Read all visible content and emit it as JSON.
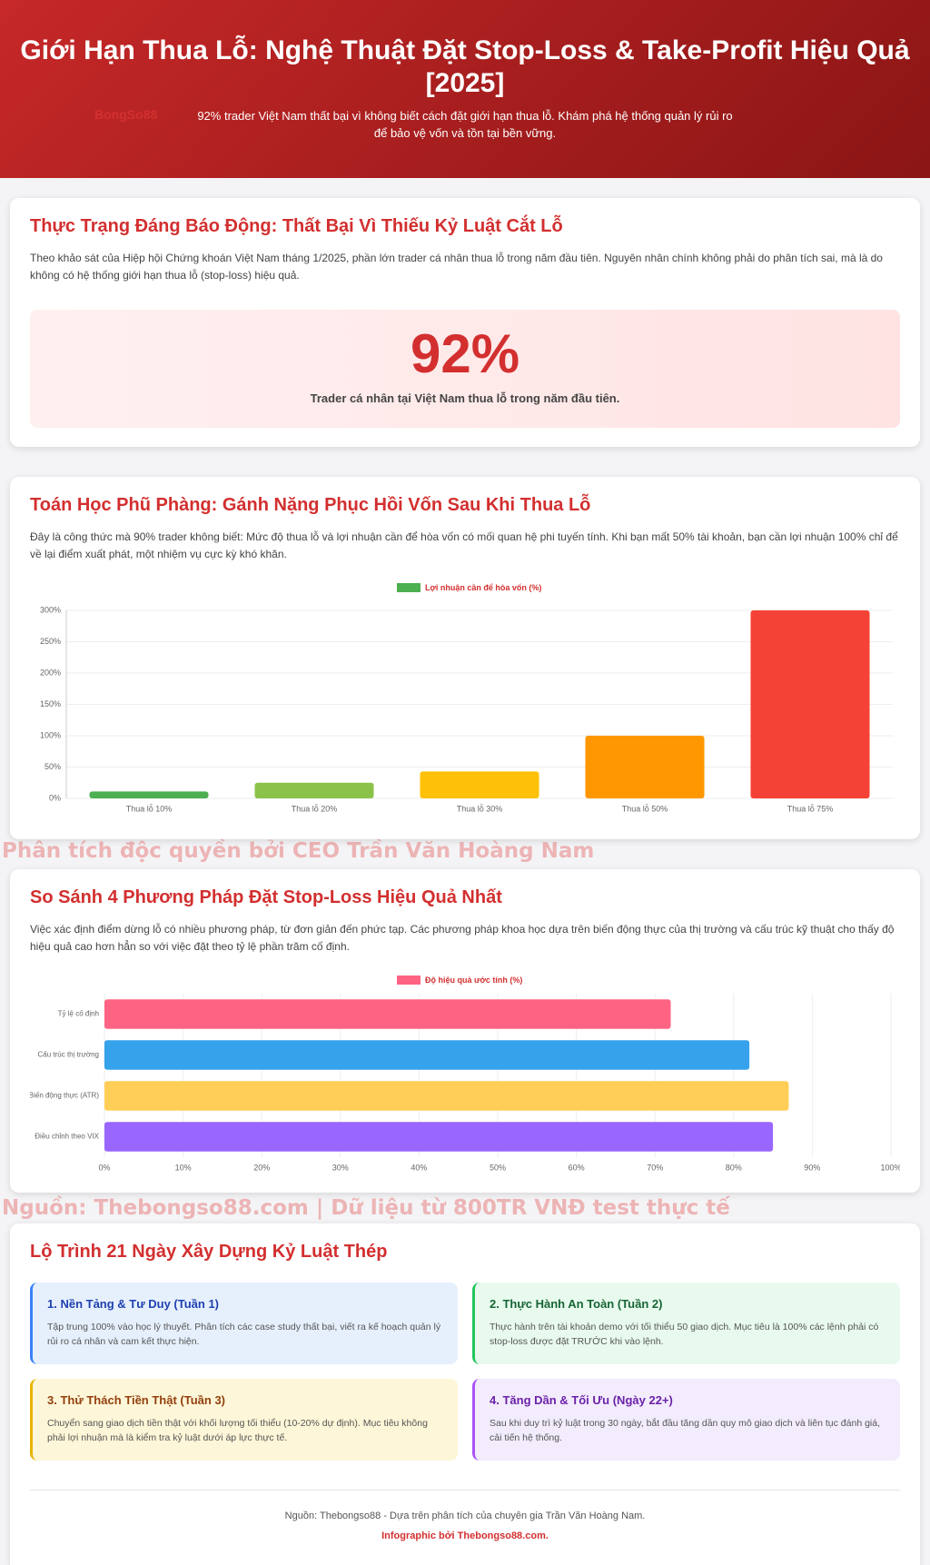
{
  "header": {
    "title": "Giới Hạn Thua Lỗ: Nghệ Thuật Đặt Stop-Loss & Take-Profit Hiệu Quả [2025]",
    "subtitle": "92% trader Việt Nam thất bại vì không biết cách đặt giới hạn thua lỗ. Khám phá hệ thống quản lý rủi ro để bảo vệ vốn và tồn tại bền vững.",
    "logo": "BongSo88"
  },
  "section1": {
    "title": "Thực Trạng Đáng Báo Động: Thất Bại Vì Thiếu Kỷ Luật Cắt Lỗ",
    "text": "Theo khảo sát của Hiệp hội Chứng khoán Việt Nam tháng 1/2025, phần lớn trader cá nhân thua lỗ trong năm đầu tiên. Nguyên nhân chính không phải do phân tích sai, mà là do không có hệ thống giới hạn thua lỗ (stop-loss) hiệu quả.",
    "stat": "92%",
    "stat_caption": "Trader cá nhân tại Việt Nam thua lỗ trong năm đầu tiên."
  },
  "section2": {
    "title": "Toán Học Phũ Phàng: Gánh Nặng Phục Hồi Vốn Sau Khi Thua Lỗ",
    "text": "Đây là công thức mà 90% trader không biết: Mức độ thua lỗ và lợi nhuận cần để hòa vốn có mối quan hệ phi tuyến tính. Khi bạn mất 50% tài khoản, bạn cần lợi nhuận 100% chỉ để về lại điểm xuất phát, một nhiệm vụ cực kỳ khó khăn."
  },
  "watermark1": "Phân tích độc quyền bởi CEO Trần Văn Hoàng Nam",
  "section3": {
    "title": "So Sánh 4 Phương Pháp Đặt Stop-Loss Hiệu Quả Nhất",
    "text": "Việc xác định điểm dừng lỗ có nhiều phương pháp, từ đơn giản đến phức tạp. Các phương pháp khoa học dựa trên biến động thực của thị trường và cấu trúc kỹ thuật cho thấy độ hiệu quả cao hơn hẳn so với việc đặt theo tỷ lệ phần trăm cố định."
  },
  "watermark2": "Nguồn: Thebongso88.com | Dữ liệu từ 800TR VNĐ test thực tế",
  "roadmap": {
    "title": "Lộ Trình 21 Ngày Xây Dựng Kỷ Luật Thép",
    "steps": [
      {
        "title": "1. Nền Tảng & Tư Duy (Tuần 1)",
        "text": "Tập trung 100% vào học lý thuyết. Phân tích các case study thất bại, viết ra kế hoạch quản lý rủi ro cá nhân và cam kết thực hiện."
      },
      {
        "title": "2. Thực Hành An Toàn (Tuần 2)",
        "text": "Thực hành trên tài khoản demo với tối thiểu 50 giao dịch. Mục tiêu là 100% các lệnh phải có stop-loss được đặt TRƯỚC khi vào lệnh."
      },
      {
        "title": "3. Thử Thách Tiền Thật (Tuần 3)",
        "text": "Chuyển sang giao dịch tiền thật với khối lượng tối thiểu (10-20% dự định). Mục tiêu không phải lợi nhuận mà là kiểm tra kỷ luật dưới áp lực thực tế."
      },
      {
        "title": "4. Tăng Dần & Tối Ưu (Ngày 22+)",
        "text": "Sau khi duy trì kỷ luật trong 30 ngày, bắt đầu tăng dần quy mô giao dịch và liên tục đánh giá, cải tiến hệ thống."
      }
    ]
  },
  "footer": {
    "source": "Nguồn: Thebongso88 - Dựa trên phân tích của chuyên gia Trần Văn Hoàng Nam.",
    "credit": "Infographic bởi Thebongso88.com."
  },
  "chart_data": [
    {
      "type": "bar",
      "orientation": "vertical",
      "categories": [
        "Thua lỗ 10%",
        "Thua lỗ 20%",
        "Thua lỗ 30%",
        "Thua lỗ 50%",
        "Thua lỗ 75%"
      ],
      "series": [
        {
          "name": "Lợi nhuận cần để hòa vốn (%)",
          "color": "#4caf50",
          "values": [
            11,
            25,
            43,
            100,
            300
          ]
        }
      ],
      "bar_colors": [
        "#4caf50",
        "#8bc34a",
        "#ffc107",
        "#ff9800",
        "#f44336"
      ],
      "ylim": [
        0,
        300
      ],
      "yticks": [
        {
          "value": 0,
          "label": "0%"
        },
        {
          "value": 50,
          "label": "50%"
        },
        {
          "value": 100,
          "label": "100%"
        },
        {
          "value": 150,
          "label": "150%"
        },
        {
          "value": 200,
          "label": "200%"
        },
        {
          "value": 250,
          "label": "250%"
        },
        {
          "value": 300,
          "label": "300%"
        }
      ],
      "grid": true,
      "legend": "top"
    },
    {
      "type": "bar",
      "orientation": "horizontal",
      "categories": [
        "Tỷ lệ cố định",
        "Cấu trúc thị trường",
        "Biến động thực (ATR)",
        "Điều chỉnh theo VIX"
      ],
      "series": [
        {
          "name": "Độ hiệu quả ước tính (%)",
          "color": "#ff6384",
          "values": [
            72,
            82,
            87,
            85
          ]
        }
      ],
      "bar_colors": [
        "#ff6384",
        "#36a2eb",
        "#ffce56",
        "#9966ff"
      ],
      "xlim": [
        0,
        100
      ],
      "xticks": [
        {
          "value": 0,
          "label": "0%"
        },
        {
          "value": 10,
          "label": "10%"
        },
        {
          "value": 20,
          "label": "20%"
        },
        {
          "value": 30,
          "label": "30%"
        },
        {
          "value": 40,
          "label": "40%"
        },
        {
          "value": 50,
          "label": "50%"
        },
        {
          "value": 60,
          "label": "60%"
        },
        {
          "value": 70,
          "label": "70%"
        },
        {
          "value": 80,
          "label": "80%"
        },
        {
          "value": 90,
          "label": "90%"
        },
        {
          "value": 100,
          "label": "100%"
        }
      ],
      "grid": true,
      "legend": "top"
    }
  ]
}
